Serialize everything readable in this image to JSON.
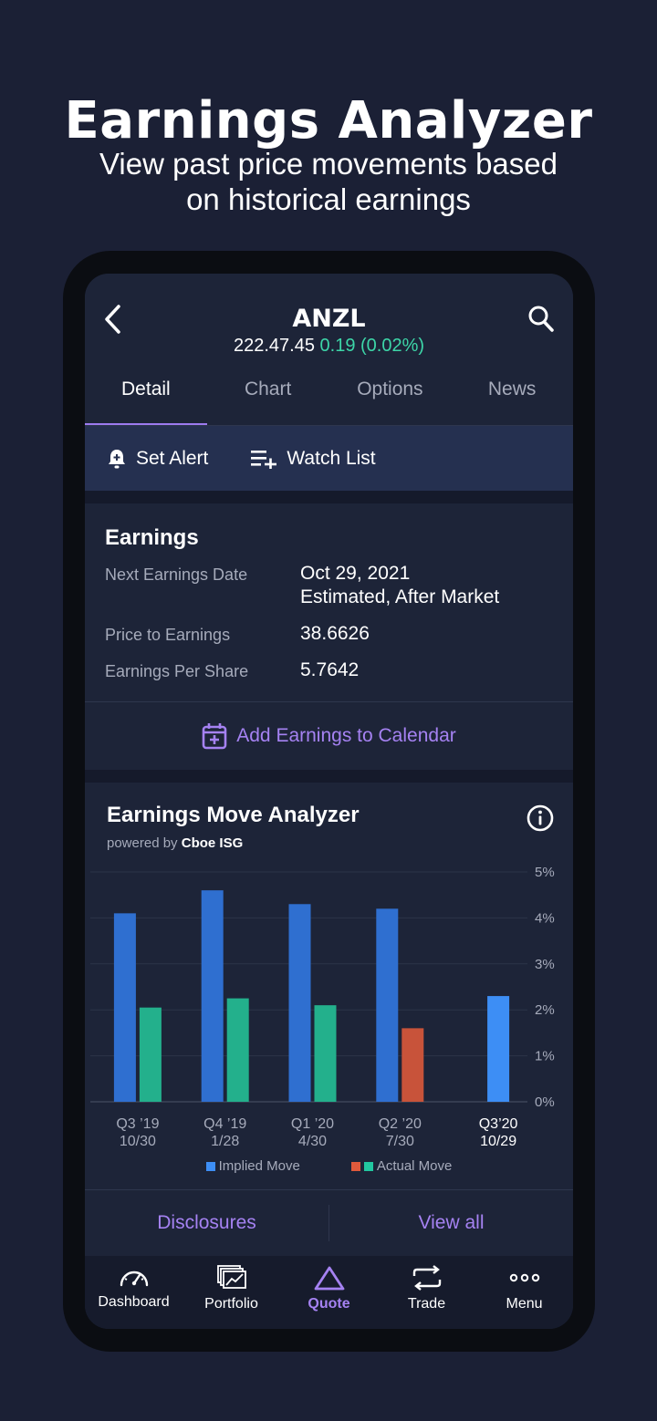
{
  "promo": {
    "title": "Earnings Analyzer",
    "subtitle_line1": "View past price movements based",
    "subtitle_line2": "on historical earnings"
  },
  "header": {
    "ticker": "ANZL",
    "price": "222.47.45",
    "change": "0.19 (0.02%)"
  },
  "tabs": [
    {
      "label": "Detail",
      "active": true
    },
    {
      "label": "Chart",
      "active": false
    },
    {
      "label": "Options",
      "active": false
    },
    {
      "label": "News",
      "active": false
    }
  ],
  "actions": {
    "set_alert": "Set Alert",
    "watch_list": "Watch List"
  },
  "earnings": {
    "title": "Earnings",
    "next_date_label": "Next Earnings Date",
    "next_date_value": "Oct 29, 2021",
    "next_date_note": "Estimated, After Market",
    "pe_label": "Price to Earnings",
    "pe_value": "38.6626",
    "eps_label": "Earnings Per Share",
    "eps_value": "5.7642",
    "add_calendar": "Add Earnings to Calendar"
  },
  "analyzer": {
    "title": "Earnings Move Analyzer",
    "powered_by": "powered by",
    "provider": "Cboe ISG",
    "legend_implied": "Implied Move",
    "legend_actual": "Actual Move"
  },
  "chart_data": {
    "type": "bar",
    "categories": [
      {
        "quarter": "Q3 ’19",
        "date": "10/30",
        "upcoming": false
      },
      {
        "quarter": "Q4 ’19",
        "date": "1/28",
        "upcoming": false
      },
      {
        "quarter": "Q1 ’20",
        "date": "4/30",
        "upcoming": false
      },
      {
        "quarter": "Q2 ’20",
        "date": "7/30",
        "upcoming": false
      },
      {
        "quarter": "Q3’20",
        "date": "10/29",
        "upcoming": true
      }
    ],
    "series": [
      {
        "name": "Implied Move",
        "values": [
          4.1,
          4.6,
          4.3,
          4.2,
          2.3
        ]
      },
      {
        "name": "Actual Move",
        "values": [
          2.05,
          2.25,
          2.1,
          1.6,
          null
        ],
        "direction": [
          "up",
          "up",
          "up",
          "down",
          null
        ]
      }
    ],
    "y_ticks": [
      "0%",
      "1%",
      "2%",
      "3%",
      "4%",
      "5%"
    ],
    "ylim": [
      0,
      5
    ],
    "grid": true,
    "colors": {
      "implied": "#2f6fd0",
      "implied_upcoming": "#3d8ef5",
      "actual_up": "#23b08c",
      "actual_down": "#c8533a",
      "legend_implied": "#3d8ef5",
      "legend_down": "#e05a3c",
      "legend_up": "#22c7a0"
    }
  },
  "links": {
    "disclosures": "Disclosures",
    "view_all": "View all"
  },
  "nav": [
    {
      "label": "Dashboard",
      "icon": "gauge-icon",
      "active": false
    },
    {
      "label": "Portfolio",
      "icon": "portfolio-icon",
      "active": false
    },
    {
      "label": "Quote",
      "icon": "triangle-icon",
      "active": true
    },
    {
      "label": "Trade",
      "icon": "swap-arrows-icon",
      "active": false
    },
    {
      "label": "Menu",
      "icon": "dots-icon",
      "active": false
    }
  ]
}
